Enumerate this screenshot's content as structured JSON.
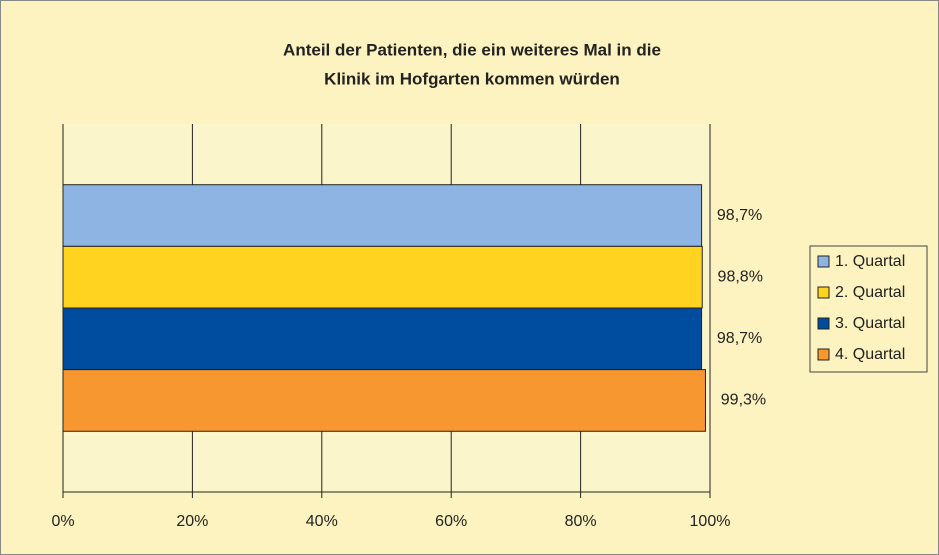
{
  "chart_data": {
    "type": "bar",
    "orientation": "horizontal",
    "title": [
      "Anteil der Patienten, die ein weiteres Mal in die",
      "Klinik im Hofgarten kommen würden"
    ],
    "categories": [
      null
    ],
    "series": [
      {
        "name": "1. Quartal",
        "color": "#8eb4e3",
        "values": [
          98.7
        ],
        "value_labels": [
          "98,7%"
        ]
      },
      {
        "name": "2. Quartal",
        "color": "#ffd320",
        "values": [
          98.8
        ],
        "value_labels": [
          "98,8%"
        ]
      },
      {
        "name": "3. Quartal",
        "color": "#004c9e",
        "values": [
          98.7
        ],
        "value_labels": [
          "98,7%"
        ]
      },
      {
        "name": "4. Quartal",
        "color": "#f7972f",
        "values": [
          99.3
        ],
        "value_labels": [
          "99,3%"
        ]
      }
    ],
    "xlim": [
      0,
      100
    ],
    "xticks": [
      {
        "value": 0,
        "label": "0%"
      },
      {
        "value": 20,
        "label": "20%"
      },
      {
        "value": 40,
        "label": "40%"
      },
      {
        "value": 60,
        "label": "60%"
      },
      {
        "value": 80,
        "label": "80%"
      },
      {
        "value": 100,
        "label": "100%"
      }
    ],
    "grid": true,
    "legend": "right"
  }
}
